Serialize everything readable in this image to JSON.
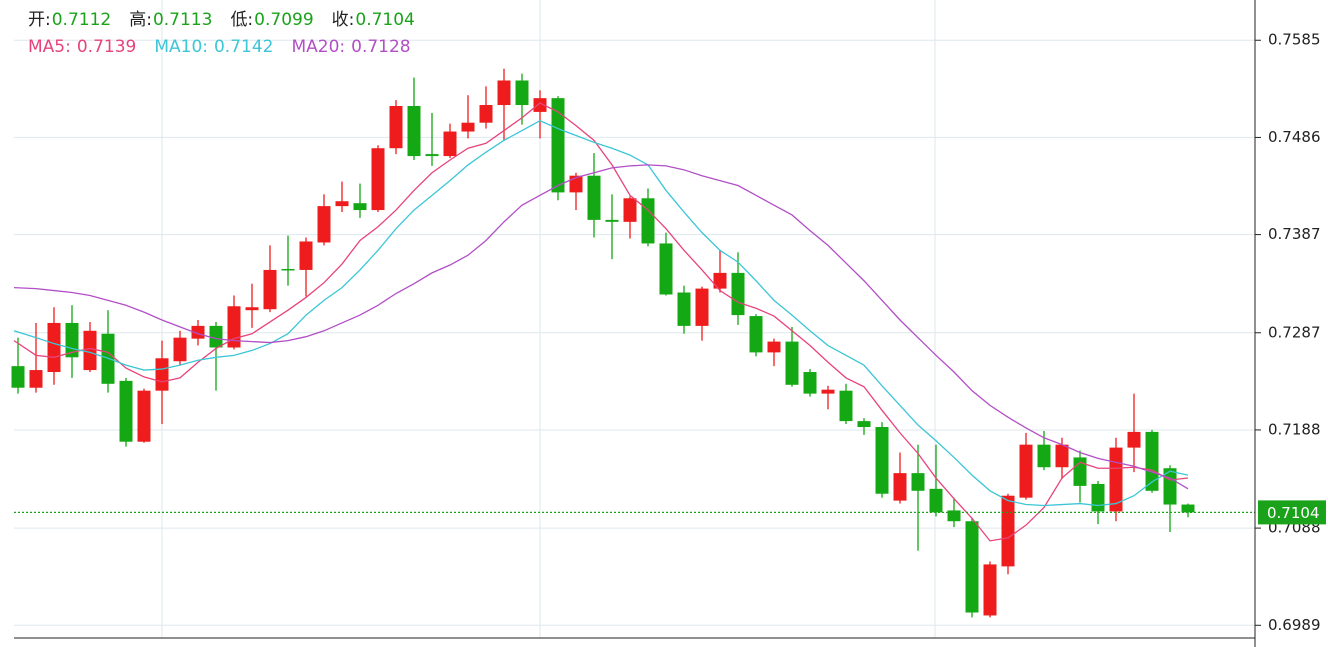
{
  "chart_data": {
    "type": "candlestick",
    "header": [
      {
        "label": "开:",
        "value": 0.7112
      },
      {
        "label": "高:",
        "value": 0.7113
      },
      {
        "label": "低:",
        "value": 0.7099
      },
      {
        "label": "收:",
        "value": 0.7104
      }
    ],
    "header_color": "#1aa31a",
    "up_color": "#ee1c1c",
    "down_color": "#14a814",
    "open": [
      0.7253,
      0.7231,
      0.7247,
      0.7297,
      0.7249,
      0.7286,
      0.7238,
      0.7176,
      0.7228,
      0.7258,
      0.7281,
      0.7294,
      0.7272,
      0.731,
      0.7311,
      0.7352,
      0.7351,
      0.7379,
      0.7416,
      0.7419,
      0.7412,
      0.7475,
      0.7518,
      0.7469,
      0.7467,
      0.7492,
      0.7501,
      0.7519,
      0.7544,
      0.7512,
      0.7526,
      0.743,
      0.7447,
      0.7402,
      0.74,
      0.7424,
      0.7378,
      0.7328,
      0.7294,
      0.7332,
      0.7348,
      0.7304,
      0.7267,
      0.7278,
      0.7247,
      0.7225,
      0.7228,
      0.7197,
      0.7191,
      0.7116,
      0.7144,
      0.7128,
      0.7106,
      0.7095,
      0.6999,
      0.7049,
      0.7119,
      0.7173,
      0.715,
      0.716,
      0.7133,
      0.7105,
      0.717,
      0.7186,
      0.7149,
      0.7112
    ],
    "high": [
      0.7282,
      0.7297,
      0.7313,
      0.7315,
      0.7298,
      0.731,
      0.7241,
      0.723,
      0.7279,
      0.7289,
      0.73,
      0.7298,
      0.7325,
      0.7337,
      0.7376,
      0.7386,
      0.7384,
      0.7428,
      0.7441,
      0.7439,
      0.7478,
      0.7524,
      0.7547,
      0.7511,
      0.75,
      0.7529,
      0.7538,
      0.7556,
      0.7551,
      0.7534,
      0.7528,
      0.745,
      0.747,
      0.7428,
      0.7426,
      0.7434,
      0.7389,
      0.7335,
      0.7334,
      0.7371,
      0.7369,
      0.7306,
      0.7281,
      0.7293,
      0.725,
      0.7233,
      0.7235,
      0.72,
      0.7196,
      0.7165,
      0.7173,
      0.7173,
      0.7119,
      0.7098,
      0.7054,
      0.7123,
      0.7185,
      0.7187,
      0.718,
      0.7167,
      0.7136,
      0.718,
      0.7225,
      0.7188,
      0.7152,
      0.7113
    ],
    "low": [
      0.7225,
      0.7226,
      0.7234,
      0.7241,
      0.7247,
      0.7226,
      0.7171,
      0.7175,
      0.7194,
      0.7254,
      0.7274,
      0.7228,
      0.727,
      0.7292,
      0.7308,
      0.7335,
      0.7324,
      0.7376,
      0.741,
      0.7404,
      0.741,
      0.7469,
      0.7463,
      0.7457,
      0.7465,
      0.7485,
      0.7495,
      0.7483,
      0.7499,
      0.7485,
      0.7422,
      0.7412,
      0.7384,
      0.7362,
      0.7383,
      0.7375,
      0.7325,
      0.7286,
      0.7279,
      0.7328,
      0.7295,
      0.7263,
      0.7253,
      0.7232,
      0.7222,
      0.7209,
      0.7194,
      0.7183,
      0.7119,
      0.7113,
      0.7065,
      0.71,
      0.7089,
      0.6997,
      0.6997,
      0.7041,
      0.7117,
      0.7147,
      0.7138,
      0.7114,
      0.7092,
      0.7095,
      0.7145,
      0.7124,
      0.7084,
      0.7099
    ],
    "close": [
      0.7231,
      0.7249,
      0.7297,
      0.7262,
      0.7289,
      0.7235,
      0.7176,
      0.7228,
      0.7261,
      0.7282,
      0.7294,
      0.7272,
      0.7314,
      0.7313,
      0.7351,
      0.7351,
      0.738,
      0.7416,
      0.7421,
      0.7412,
      0.7475,
      0.7518,
      0.7467,
      0.7467,
      0.7492,
      0.7501,
      0.7519,
      0.7544,
      0.7519,
      0.7526,
      0.743,
      0.7447,
      0.7402,
      0.74,
      0.7424,
      0.7378,
      0.7326,
      0.7294,
      0.7332,
      0.7348,
      0.7305,
      0.7267,
      0.7278,
      0.7234,
      0.7225,
      0.7229,
      0.7197,
      0.7191,
      0.7123,
      0.7144,
      0.7126,
      0.7104,
      0.7095,
      0.7002,
      0.7051,
      0.7121,
      0.7173,
      0.715,
      0.7173,
      0.7131,
      0.7105,
      0.717,
      0.7186,
      0.7126,
      0.7112,
      0.7104
    ],
    "series": [
      {
        "name": "MA5:",
        "color": "#e8437c",
        "last": 0.7139,
        "values": [
          0.7279,
          0.7264,
          0.7262,
          0.7267,
          0.7271,
          0.7267,
          0.7251,
          0.7242,
          0.7237,
          0.7241,
          0.7257,
          0.7271,
          0.7281,
          0.7286,
          0.7298,
          0.731,
          0.7323,
          0.7338,
          0.7357,
          0.7381,
          0.7395,
          0.7412,
          0.7432,
          0.745,
          0.7463,
          0.7475,
          0.748,
          0.7493,
          0.7506,
          0.7521,
          0.7512,
          0.7498,
          0.7483,
          0.7458,
          0.7427,
          0.7412,
          0.7393,
          0.7371,
          0.7351,
          0.733,
          0.7318,
          0.7312,
          0.7304,
          0.7289,
          0.7274,
          0.7257,
          0.7241,
          0.7232,
          0.7208,
          0.7185,
          0.7164,
          0.7139,
          0.7118,
          0.7098,
          0.7075,
          0.7078,
          0.7091,
          0.7109,
          0.7139,
          0.7155,
          0.7149,
          0.7149,
          0.715,
          0.7147,
          0.7137,
          0.7139
        ]
      },
      {
        "name": "MA10:",
        "color": "#3cc6d6",
        "last": 0.7142,
        "values": [
          0.7289,
          0.7282,
          0.7276,
          0.7271,
          0.7267,
          0.7261,
          0.7254,
          0.7249,
          0.725,
          0.7254,
          0.7259,
          0.7262,
          0.7264,
          0.7269,
          0.7276,
          0.7286,
          0.7305,
          0.732,
          0.7333,
          0.7351,
          0.7371,
          0.7393,
          0.7412,
          0.7427,
          0.7442,
          0.7458,
          0.7471,
          0.7483,
          0.7493,
          0.7503,
          0.7495,
          0.7488,
          0.7481,
          0.7475,
          0.7468,
          0.7458,
          0.7432,
          0.741,
          0.7389,
          0.7371,
          0.7359,
          0.734,
          0.732,
          0.7305,
          0.7289,
          0.7274,
          0.7264,
          0.7254,
          0.7233,
          0.7213,
          0.7193,
          0.7177,
          0.716,
          0.7142,
          0.7126,
          0.7116,
          0.7112,
          0.7111,
          0.7112,
          0.7113,
          0.7111,
          0.7113,
          0.7121,
          0.7135,
          0.7146,
          0.7142
        ]
      },
      {
        "name": "MA20:",
        "color": "#b24fc6",
        "last": 0.7128,
        "values": [
          0.7333,
          0.7332,
          0.733,
          0.7328,
          0.7325,
          0.732,
          0.7315,
          0.7308,
          0.73,
          0.7293,
          0.7286,
          0.7281,
          0.7279,
          0.7278,
          0.7277,
          0.7279,
          0.7283,
          0.7289,
          0.7297,
          0.7305,
          0.7315,
          0.7327,
          0.7337,
          0.7348,
          0.7356,
          0.7366,
          0.7381,
          0.74,
          0.7417,
          0.7427,
          0.7437,
          0.7445,
          0.745,
          0.7455,
          0.7457,
          0.7458,
          0.7457,
          0.7453,
          0.7447,
          0.7442,
          0.7437,
          0.7427,
          0.7417,
          0.7407,
          0.7391,
          0.7376,
          0.7358,
          0.734,
          0.732,
          0.73,
          0.7282,
          0.7264,
          0.7247,
          0.7228,
          0.7213,
          0.7201,
          0.719,
          0.718,
          0.7173,
          0.7165,
          0.7159,
          0.7155,
          0.7151,
          0.7145,
          0.7139,
          0.7128
        ]
      }
    ],
    "current": 0.7104,
    "current_color": "#1aa31a",
    "ylim": [
      0.6974,
      0.7626
    ],
    "yticks": [
      0.6989,
      0.7088,
      0.7188,
      0.7287,
      0.7387,
      0.7486,
      0.7585
    ],
    "grid": true
  }
}
